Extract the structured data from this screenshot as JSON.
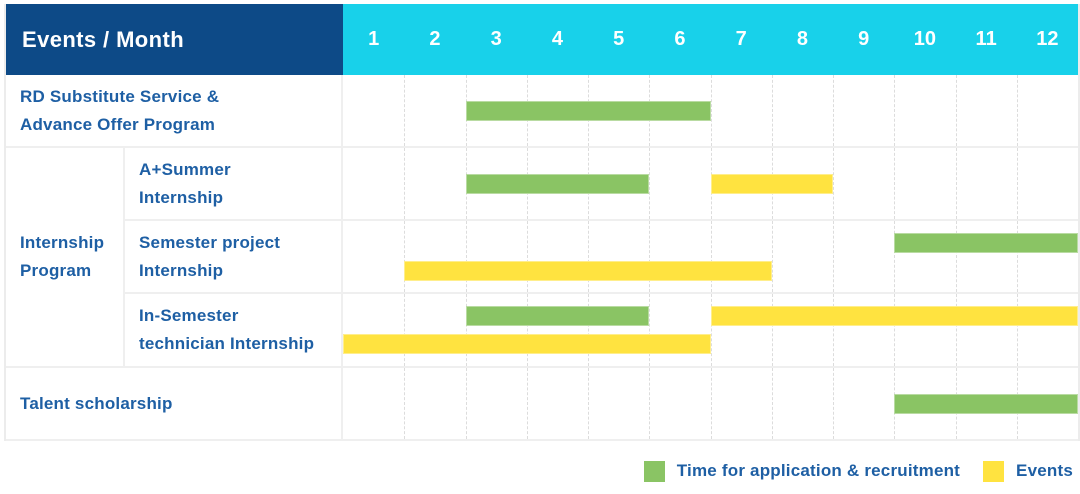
{
  "header": {
    "corner_label": "Events / Month",
    "months": [
      "1",
      "2",
      "3",
      "4",
      "5",
      "6",
      "7",
      "8",
      "9",
      "10",
      "11",
      "12"
    ]
  },
  "colors": {
    "header_navy": "#0d4a87",
    "header_cyan": "#18d1ea",
    "bar_green": "#8ac464",
    "bar_yellow": "#ffe340",
    "label_blue": "#1e5fa4",
    "grid_dash": "#dcdcdc"
  },
  "legend": {
    "items": [
      {
        "key": "application",
        "label": "Time for application & recruitment",
        "color": "#8ac464"
      },
      {
        "key": "events",
        "label": "Events",
        "color": "#ffe340"
      }
    ]
  },
  "group_label_lines": [
    "Internship",
    "Program"
  ],
  "chart_data": {
    "type": "bar",
    "subtype": "gantt",
    "title": "Events / Month",
    "x_ticks": [
      1,
      2,
      3,
      4,
      5,
      6,
      7,
      8,
      9,
      10,
      11,
      12
    ],
    "x_range": [
      1,
      12
    ],
    "legend": [
      {
        "key": "application",
        "label": "Time for application & recruitment",
        "color": "#8ac464"
      },
      {
        "key": "events",
        "label": "Events",
        "color": "#ffe340"
      }
    ],
    "rows": [
      {
        "group": "",
        "label": "RD Substitute Service & Advance Offer Program",
        "label_lines": [
          "RD Substitute Service &",
          "Advance Offer Program"
        ],
        "lanes": [
          [
            {
              "series": "application",
              "start_month": 3,
              "end_month": 6
            }
          ]
        ]
      },
      {
        "group": "Internship Program",
        "label": "A+Summer Internship",
        "label_lines": [
          "A+Summer",
          "Internship"
        ],
        "lanes": [
          [
            {
              "series": "application",
              "start_month": 3,
              "end_month": 5
            },
            {
              "series": "events",
              "start_month": 7,
              "end_month": 8
            }
          ]
        ]
      },
      {
        "group": "Internship Program",
        "label": "Semester project Internship",
        "label_lines": [
          "Semester project",
          "Internship"
        ],
        "lanes": [
          [
            {
              "series": "application",
              "start_month": 10,
              "end_month": 12
            }
          ],
          [
            {
              "series": "events",
              "start_month": 2,
              "end_month": 7
            }
          ]
        ]
      },
      {
        "group": "Internship Program",
        "label": "In-Semester technician Internship",
        "label_lines": [
          "In-Semester",
          "technician Internship"
        ],
        "lanes": [
          [
            {
              "series": "application",
              "start_month": 3,
              "end_month": 5
            },
            {
              "series": "events",
              "start_month": 7,
              "end_month": 12
            }
          ],
          [
            {
              "series": "events",
              "start_month": 1,
              "end_month": 6
            }
          ]
        ]
      },
      {
        "group": "",
        "label": "Talent scholarship",
        "label_lines": [
          "Talent scholarship"
        ],
        "lanes": [
          [
            {
              "series": "application",
              "start_month": 10,
              "end_month": 12
            }
          ]
        ]
      }
    ]
  }
}
